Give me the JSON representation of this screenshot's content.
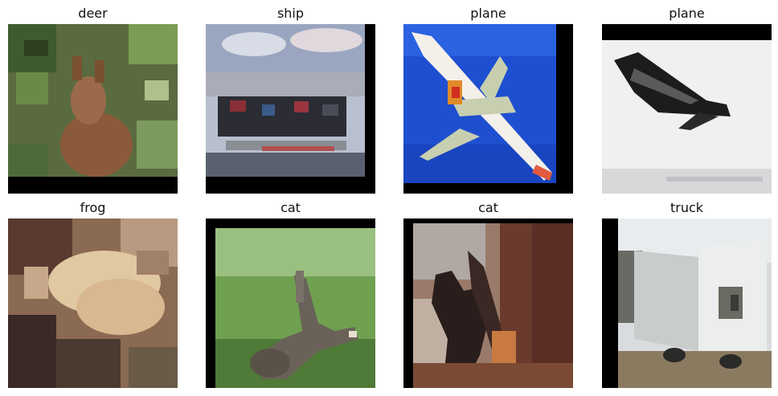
{
  "grid": {
    "images": [
      {
        "label": "deer",
        "subject": "deer in foliage",
        "shift": "top"
      },
      {
        "label": "ship",
        "subject": "container ship",
        "shift": "left"
      },
      {
        "label": "plane",
        "subject": "airliner in blue sky",
        "shift": "left"
      },
      {
        "label": "plane",
        "subject": "dark aircraft on white sky",
        "shift": "down"
      },
      {
        "label": "frog",
        "subject": "blurry tan animal",
        "shift": "none"
      },
      {
        "label": "cat",
        "subject": "cat leaping on grass",
        "shift": "down-right"
      },
      {
        "label": "cat",
        "subject": "dark cat on wall",
        "shift": "down-right"
      },
      {
        "label": "truck",
        "subject": "white box truck",
        "shift": "right"
      }
    ]
  }
}
